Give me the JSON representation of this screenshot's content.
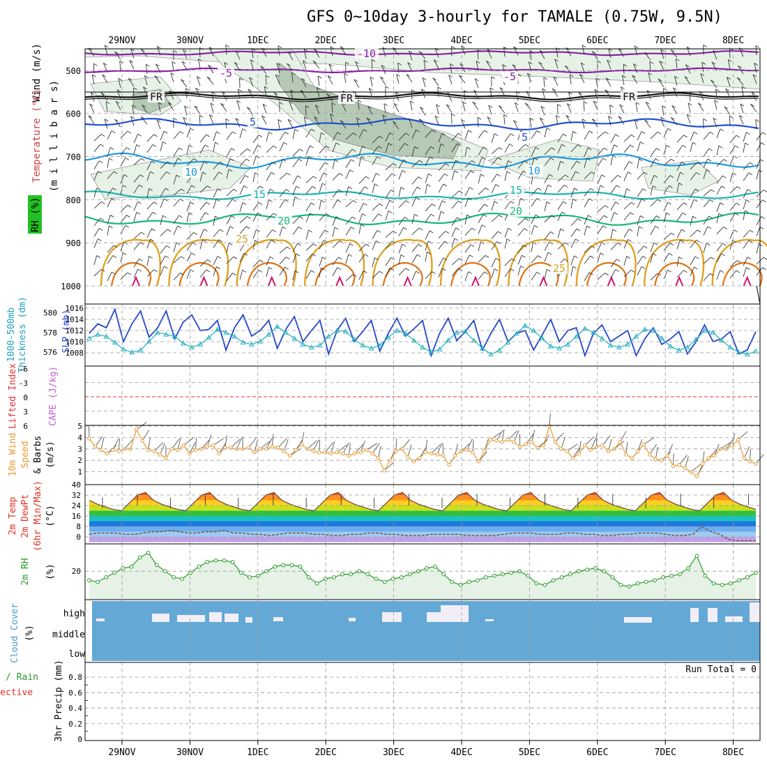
{
  "title": "GFS 0~10day 3-hourly for TAMALE (0.75W, 9.5N)",
  "colors": {
    "purple": "#8b1fa8",
    "blue": "#1f4fd6",
    "sky": "#1a9ae0",
    "teal": "#19b3b0",
    "green": "#17b87a",
    "orange": "#e0a020",
    "darkorange": "#e07010",
    "magenta": "#d0106a",
    "rh_fill": "#e6f2e6",
    "rh_dark": "#b5c9b5",
    "slp": "#2244cc",
    "thick": "#20b0c0",
    "wind": "#e89a30",
    "temp_red": "#e02010",
    "rh2m": "#2a9a2a",
    "cloud": "#64a9d6",
    "cloud_clear": "#f2eef8",
    "cape_line": "#e03030"
  },
  "chart_data": [
    {
      "type": "line",
      "panel": "upper-air",
      "ylabel_parts": [
        "RH (%)",
        "Temperature (°C)",
        "Wind (m/s)"
      ],
      "yunit": "(m i l l i b a r s)",
      "y_ticks": [
        500,
        600,
        700,
        800,
        900,
        1000
      ],
      "ylim": [
        1000,
        450
      ],
      "date_labels": [
        "29NOV",
        "30NOV",
        "1DEC",
        "2DEC",
        "3DEC",
        "4DEC",
        "5DEC",
        "6DEC",
        "7DEC",
        "8DEC"
      ],
      "isotherms": [
        {
          "label": "-10",
          "p": 460
        },
        {
          "label": "-5",
          "p": 500
        },
        {
          "label": "FR",
          "p": 560
        },
        {
          "label": "5",
          "p": 625
        },
        {
          "label": "10",
          "p": 710
        },
        {
          "label": "15",
          "p": 790
        },
        {
          "label": "20",
          "p": 845
        },
        {
          "label": "25",
          "p": 925
        }
      ],
      "rh_contours": [
        "10",
        "30",
        "50"
      ]
    },
    {
      "type": "line",
      "panel": "thickness-slp",
      "ylabel_left": "1000-500mb Thickness (dm)",
      "ylabel_right": "SLP (mb)",
      "left_ticks": [
        576,
        578,
        580
      ],
      "right_ticks": [
        1008,
        1010,
        1012,
        1014,
        1016
      ],
      "series": [
        {
          "name": "SLP (mb)",
          "values": [
            1011.5,
            1013.2,
            1012.5,
            1015.8,
            1010.0,
            1013.2,
            1015.5,
            1010.8,
            1012.5,
            1015.5,
            1010.5,
            1013.5,
            1014.8,
            1012.0,
            1012.2,
            1013.8,
            1008.5,
            1012.5,
            1014.8,
            1011.0,
            1012.0,
            1013.8,
            1008.8,
            1012.2,
            1014.5,
            1010.0,
            1012.0,
            1013.8,
            1007.8,
            1012.0,
            1014.2,
            1010.0,
            1011.8,
            1013.8,
            1008.3,
            1011.5,
            1014.2,
            1011.0,
            1012.3,
            1013.8,
            1007.5,
            1011.5,
            1014.2,
            1010.2,
            1011.8,
            1013.8,
            1008.5,
            1011.5,
            1014.0,
            1010.0,
            1011.5,
            1012.0,
            1008.5,
            1011.2,
            1014.0,
            1010.0,
            1012.0,
            1012.5,
            1007.5,
            1011.5,
            1013.0,
            1010.0,
            1011.0,
            1012.0,
            1007.5,
            1010.5,
            1012.5,
            1009.5,
            1010.5,
            1011.8,
            1007.8,
            1010.0,
            1013.0,
            1010.0,
            1010.5,
            1011.8,
            1007.8,
            1008.5,
            1011.8
          ]
        },
        {
          "name": "1000-500mb Thickness (dm)",
          "values": [
            577.4,
            577.8,
            577.6,
            577.0,
            576.3,
            576.0,
            576.2,
            577.1,
            578.0,
            577.8,
            577.6,
            576.9,
            576.5,
            576.8,
            577.5,
            578.3,
            578.0,
            577.6,
            577.0,
            576.8,
            577.1,
            577.8,
            578.6,
            578.0,
            577.4,
            576.8,
            576.5,
            576.7,
            577.6,
            578.2,
            578.1,
            577.3,
            576.7,
            576.4,
            576.7,
            577.5,
            578.2,
            577.9,
            577.2,
            576.5,
            576.0,
            576.3,
            577.2,
            578.0,
            578.1,
            577.2,
            576.4,
            575.8,
            576.2,
            577.0,
            577.9,
            578.7,
            578.2,
            577.4,
            576.6,
            576.4,
            576.8,
            577.6,
            578.4,
            578.0,
            577.4,
            576.7,
            576.5,
            576.8,
            577.6,
            578.3,
            578.2,
            577.4,
            576.6,
            576.2,
            576.5,
            577.3,
            578.2,
            578.0,
            577.2,
            576.5,
            576.0,
            575.8,
            576.1
          ]
        }
      ]
    },
    {
      "type": "line",
      "panel": "cape-li",
      "ylabel_parts": [
        "Lifted Index",
        "CAPE (J/kg)"
      ],
      "left_ticks": [
        "-6",
        "-3",
        "0",
        "3",
        "6"
      ]
    },
    {
      "type": "line",
      "panel": "wind-10m",
      "ylabel_parts": [
        "10m Wind",
        "Speed",
        "& Barbs",
        "(m/s)"
      ],
      "y_ticks": [
        1,
        2,
        3,
        4,
        5
      ],
      "ylim": [
        0,
        5
      ],
      "series": [
        {
          "name": "10m Wind Speed",
          "values": [
            3.9,
            3.2,
            2.9,
            2.6,
            2.9,
            2.8,
            3.0,
            3.0,
            4.7,
            3.7,
            2.9,
            2.8,
            2.5,
            2.2,
            3.0,
            2.9,
            3.3,
            2.6,
            2.9,
            3.0,
            3.2,
            3.3,
            2.6,
            3.1,
            3.1,
            3.0,
            3.0,
            3.1,
            2.7,
            3.0,
            3.0,
            3.2,
            3.1,
            2.8,
            2.4,
            2.9,
            3.4,
            3.0,
            2.8,
            2.7,
            2.7,
            2.6,
            2.7,
            2.6,
            2.4,
            2.6,
            2.7,
            2.9,
            2.6,
            2.2,
            1.1,
            2.0,
            2.8,
            3.0,
            2.3,
            1.9,
            2.2,
            2.7,
            2.6,
            2.5,
            2.4,
            1.6,
            2.4,
            2.8,
            2.9,
            2.7,
            1.9,
            2.8,
            3.8,
            3.7,
            3.6,
            3.8,
            3.6,
            3.2,
            3.4,
            3.6,
            3.1,
            3.3,
            5.0,
            3.6,
            3.0,
            2.8,
            2.2,
            2.6,
            3.3,
            2.9,
            3.2,
            3.3,
            2.8,
            3.0,
            3.6,
            2.5,
            2.2,
            2.8,
            3.4,
            2.5,
            2.1,
            2.0,
            2.4,
            1.5,
            1.6,
            1.3,
            1.0,
            0.6,
            1.7,
            2.2,
            2.4,
            3.0,
            3.0,
            3.3,
            3.8,
            2.2,
            1.9,
            1.7
          ]
        }
      ]
    },
    {
      "type": "area",
      "panel": "temperature",
      "ylabel_parts": [
        "2m Temp",
        "2m DewPt",
        "(6hr Min/Max)",
        "(°C)"
      ],
      "y_ticks": [
        0,
        8,
        16,
        24,
        32,
        40
      ],
      "ylim": [
        -4,
        40
      ],
      "series": [
        {
          "name": "2m Temp",
          "values": [
            28,
            25,
            23,
            21,
            20,
            26,
            32,
            34,
            28,
            25,
            23,
            21,
            20,
            26,
            32,
            34,
            28,
            25,
            23,
            21,
            20,
            26,
            32,
            34,
            28,
            25,
            23,
            21,
            20,
            26,
            32,
            34,
            28,
            25,
            23,
            21,
            20,
            26,
            32,
            34,
            28,
            25,
            23,
            21,
            20,
            26,
            32,
            34,
            28,
            25,
            23,
            21,
            20,
            26,
            32,
            34,
            28,
            25,
            23,
            21,
            20,
            26,
            32,
            34,
            28,
            25,
            23,
            21,
            20,
            26,
            32,
            34,
            28,
            25,
            23,
            21,
            20,
            26,
            32,
            34,
            28,
            25,
            23,
            21
          ]
        },
        {
          "name": "2m DewPt",
          "values": [
            2,
            3,
            3,
            3,
            2,
            2,
            3,
            4,
            4,
            5,
            4,
            3,
            3,
            4,
            4,
            5,
            3,
            3,
            2,
            2,
            1,
            2,
            3,
            3,
            3,
            2,
            2,
            1,
            1,
            2,
            2,
            3,
            3,
            2,
            2,
            1,
            1,
            1,
            2,
            2,
            2,
            2,
            1,
            1,
            1,
            1,
            2,
            3,
            3,
            3,
            2,
            2,
            2,
            3,
            3,
            2,
            2,
            1,
            1,
            2,
            2,
            3,
            3,
            3,
            2,
            1,
            1,
            2,
            8,
            4,
            2,
            -2,
            -3,
            -3,
            -3
          ]
        }
      ]
    },
    {
      "type": "area",
      "panel": "rh-2m",
      "ylabel_parts": [
        "2m RH",
        "(%)"
      ],
      "y_ticks": [
        20
      ],
      "series": [
        {
          "name": "2m RH",
          "values": [
            14,
            13,
            16,
            19,
            22,
            23,
            29,
            32,
            24,
            20,
            16,
            15,
            19,
            23,
            26,
            27,
            27,
            26,
            19,
            16,
            17,
            20,
            23,
            24,
            24,
            23,
            16,
            12,
            15,
            16,
            18,
            18,
            20,
            18,
            15,
            13,
            15,
            16,
            18,
            20,
            22,
            23,
            18,
            13,
            11,
            13,
            14,
            16,
            17,
            18,
            19,
            20,
            17,
            12,
            11,
            14,
            16,
            18,
            20,
            21,
            22,
            20,
            16,
            11,
            10,
            12,
            13,
            14,
            16,
            17,
            18,
            22,
            30,
            17,
            12,
            11,
            12,
            14,
            16,
            19
          ]
        }
      ]
    },
    {
      "type": "bar",
      "panel": "cloud-cover",
      "ylabel_parts": [
        "Cloud Cover",
        "(%)"
      ],
      "levels": [
        "high",
        "middle",
        "low"
      ]
    },
    {
      "type": "bar",
      "panel": "precip",
      "ylabel_parts": [
        "Total / Rain",
        "Convective",
        "3hr Precip (mm)"
      ],
      "y_ticks": [
        "0",
        "0.2",
        "0.4",
        "0.6",
        "0.8"
      ],
      "run_total": "Run Total = 0",
      "values": []
    }
  ]
}
